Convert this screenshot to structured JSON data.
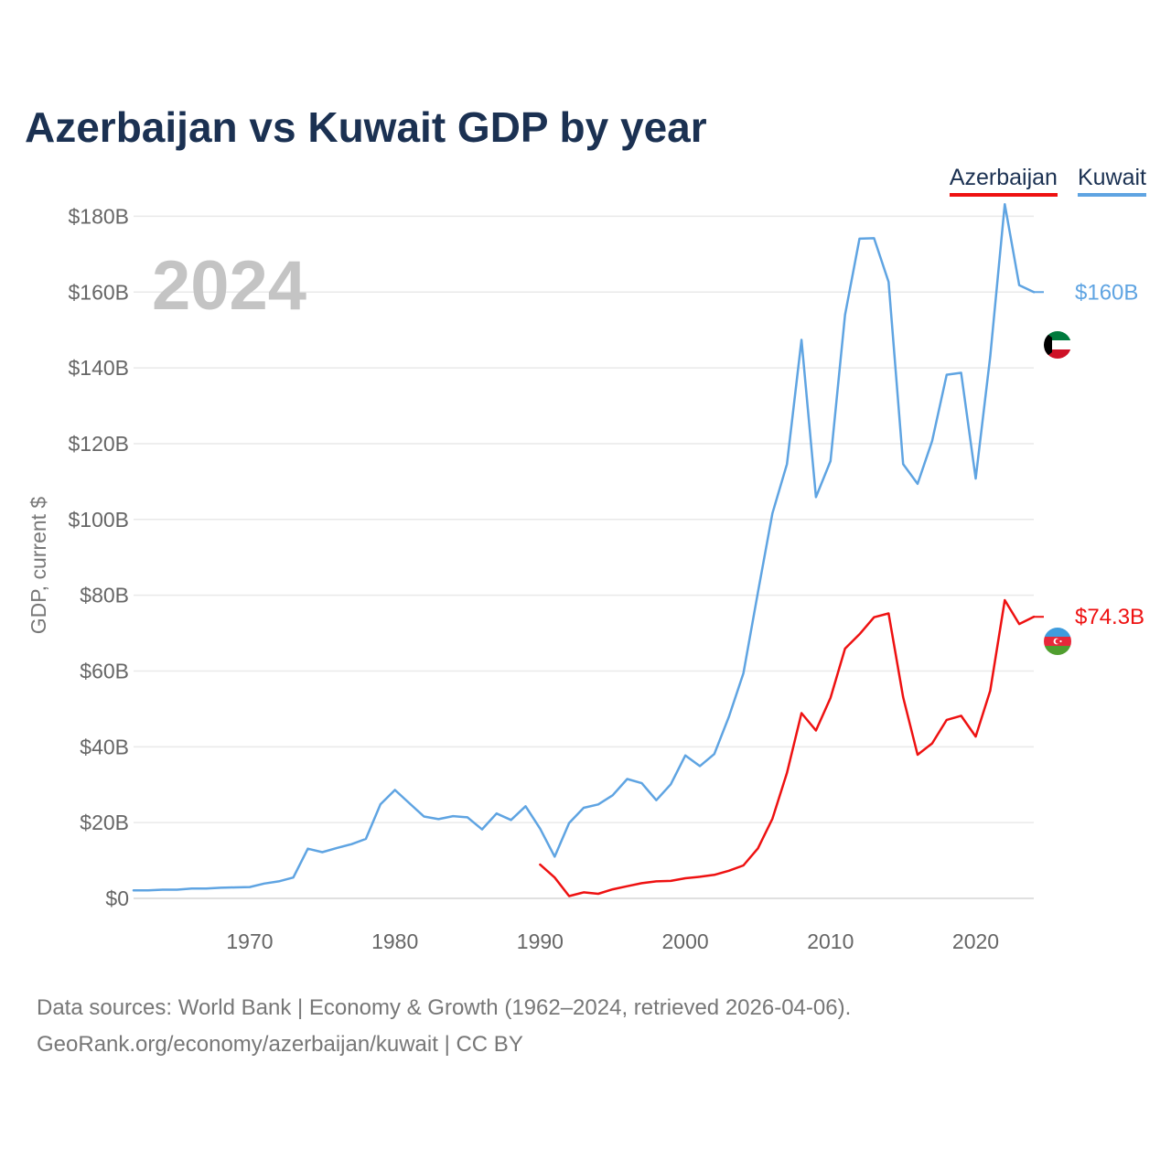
{
  "title": "Azerbaijan vs Kuwait GDP by year",
  "legend": [
    {
      "name": "Azerbaijan",
      "color": "#ee1111"
    },
    {
      "name": "Kuwait",
      "color": "#5fa4e2"
    }
  ],
  "footer": {
    "line1": "Data sources: World Bank | Economy & Growth (1962–2024, retrieved 2026-04-06).",
    "line2": "GeoRank.org/economy/azerbaijan/kuwait | CC BY"
  },
  "chart_data": {
    "type": "line",
    "title": "Azerbaijan vs Kuwait GDP by year",
    "year_label": "2024",
    "xlabel": "",
    "ylabel": "GDP, current $",
    "xlim": [
      1962,
      2024
    ],
    "ylim": [
      0,
      190
    ],
    "x_ticks": [
      1970,
      1980,
      1990,
      2000,
      2010,
      2020
    ],
    "y_ticks": [
      0,
      20,
      40,
      60,
      80,
      100,
      120,
      140,
      160,
      180
    ],
    "y_tick_labels": [
      "$0",
      "$20B",
      "$40B",
      "$60B",
      "$80B",
      "$100B",
      "$120B",
      "$140B",
      "$160B",
      "$180B"
    ],
    "grid": true,
    "series": [
      {
        "name": "Kuwait",
        "color": "#5fa4e2",
        "end_label": "$160B",
        "x": [
          1962,
          1963,
          1964,
          1965,
          1966,
          1967,
          1968,
          1969,
          1970,
          1971,
          1972,
          1973,
          1974,
          1975,
          1976,
          1977,
          1978,
          1979,
          1980,
          1981,
          1982,
          1983,
          1984,
          1985,
          1986,
          1987,
          1988,
          1989,
          1990,
          1991,
          1992,
          1993,
          1994,
          1995,
          1996,
          1997,
          1998,
          1999,
          2000,
          2001,
          2002,
          2003,
          2004,
          2005,
          2006,
          2007,
          2008,
          2009,
          2010,
          2011,
          2012,
          2013,
          2014,
          2015,
          2016,
          2017,
          2018,
          2019,
          2020,
          2021,
          2022,
          2023,
          2024
        ],
        "values": [
          2.1,
          2.1,
          2.3,
          2.3,
          2.6,
          2.6,
          2.8,
          2.9,
          3.0,
          3.9,
          4.5,
          5.5,
          13.1,
          12.2,
          13.3,
          14.3,
          15.7,
          24.8,
          28.6,
          25.1,
          21.6,
          20.9,
          21.7,
          21.4,
          18.2,
          22.4,
          20.7,
          24.3,
          18.4,
          11.0,
          19.9,
          23.9,
          24.8,
          27.2,
          31.5,
          30.4,
          25.9,
          30.1,
          37.7,
          34.9,
          38.1,
          47.9,
          59.4,
          80.8,
          101.6,
          114.6,
          147.4,
          105.9,
          115.4,
          154.0,
          174.1,
          174.2,
          162.7,
          114.6,
          109.4,
          120.7,
          138.2,
          138.7,
          110.8,
          143.0,
          183.2,
          161.8,
          160.0
        ]
      },
      {
        "name": "Azerbaijan",
        "color": "#ee1111",
        "end_label": "$74.3B",
        "x": [
          1990,
          1991,
          1992,
          1993,
          1994,
          1995,
          1996,
          1997,
          1998,
          1999,
          2000,
          2001,
          2002,
          2003,
          2004,
          2005,
          2006,
          2007,
          2008,
          2009,
          2010,
          2011,
          2012,
          2013,
          2014,
          2015,
          2016,
          2017,
          2018,
          2019,
          2020,
          2021,
          2022,
          2023,
          2024
        ],
        "values": [
          8.9,
          5.5,
          0.6,
          1.6,
          1.2,
          2.4,
          3.2,
          4.0,
          4.5,
          4.6,
          5.3,
          5.7,
          6.2,
          7.3,
          8.7,
          13.2,
          21.0,
          33.1,
          48.9,
          44.3,
          52.9,
          65.9,
          69.7,
          74.2,
          75.2,
          53.1,
          37.9,
          40.9,
          47.1,
          48.2,
          42.7,
          54.8,
          78.7,
          72.4,
          74.3
        ]
      }
    ]
  }
}
